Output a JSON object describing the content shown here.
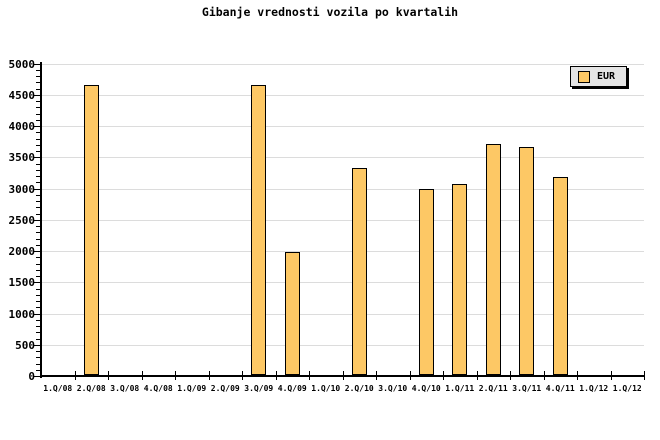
{
  "title": "Gibanje vrednosti vozila po kvartalih",
  "legend": {
    "label": "EUR"
  },
  "colors": {
    "bar_fill": "#FDC865",
    "bar_border": "#000000",
    "grid": "#DCDCDC",
    "axis": "#000000",
    "legend_bg": "#E4E4E4",
    "background": "#FFFFFF",
    "text": "#000000"
  },
  "chart_data": {
    "type": "bar",
    "title": "Gibanje vrednosti vozila po kvartalih",
    "categories": [
      "1.Q/08",
      "2.Q/08",
      "3.Q/08",
      "4.Q/08",
      "1.Q/09",
      "2.Q/09",
      "3.Q/09",
      "4.Q/09",
      "1.Q/10",
      "2.Q/10",
      "3.Q/10",
      "4.Q/10",
      "1.Q/11",
      "2.Q/11",
      "3.Q/11",
      "4.Q/11",
      "1.Q/12",
      "1.Q/12"
    ],
    "series": [
      {
        "name": "EUR",
        "values": [
          null,
          4640,
          null,
          null,
          null,
          null,
          4640,
          1975,
          null,
          3305,
          null,
          2975,
          3055,
          3700,
          3640,
          3165,
          null,
          null
        ]
      }
    ],
    "xlabel": "",
    "ylabel": "",
    "ylim": [
      0,
      5000
    ],
    "ytick_step": 500,
    "ytick_minor_step": 100,
    "ytick_labels": [
      "0",
      "500",
      "1000",
      "1500",
      "2000",
      "2500",
      "3000",
      "3500",
      "4000",
      "4500",
      "5000"
    ],
    "grid": true,
    "legend_position": "top-right"
  }
}
